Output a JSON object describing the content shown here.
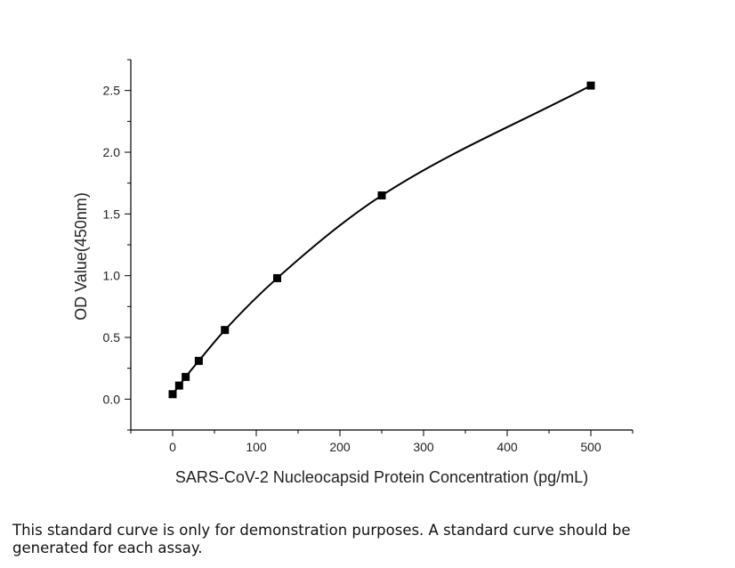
{
  "chart_data": {
    "type": "line",
    "xlabel": "SARS-CoV-2 Nucleocapsid Protein Concentration (pg/mL)",
    "ylabel": "OD Value(450nm)",
    "xlim": [
      -50,
      550
    ],
    "ylim": [
      -0.25,
      2.75
    ],
    "xticks": [
      0,
      100,
      200,
      300,
      400,
      500
    ],
    "yticks": [
      0.0,
      0.5,
      1.0,
      1.5,
      2.0,
      2.5
    ],
    "xtick_labels": [
      "0",
      "100",
      "200",
      "300",
      "400",
      "500"
    ],
    "ytick_labels": [
      "0.0",
      "0.5",
      "1.0",
      "1.5",
      "2.0",
      "2.5"
    ],
    "grid": false,
    "series": [
      {
        "marker": "square",
        "color": "#000000",
        "points": [
          {
            "x": 0,
            "y": 0.04
          },
          {
            "x": 7.8,
            "y": 0.11
          },
          {
            "x": 15.6,
            "y": 0.18
          },
          {
            "x": 31.25,
            "y": 0.31
          },
          {
            "x": 62.5,
            "y": 0.56
          },
          {
            "x": 125,
            "y": 0.98
          },
          {
            "x": 250,
            "y": 1.65
          },
          {
            "x": 500,
            "y": 2.54
          }
        ]
      }
    ]
  },
  "caption": "This standard curve is only for demonstration purposes. A standard curve should be generated for each assay."
}
